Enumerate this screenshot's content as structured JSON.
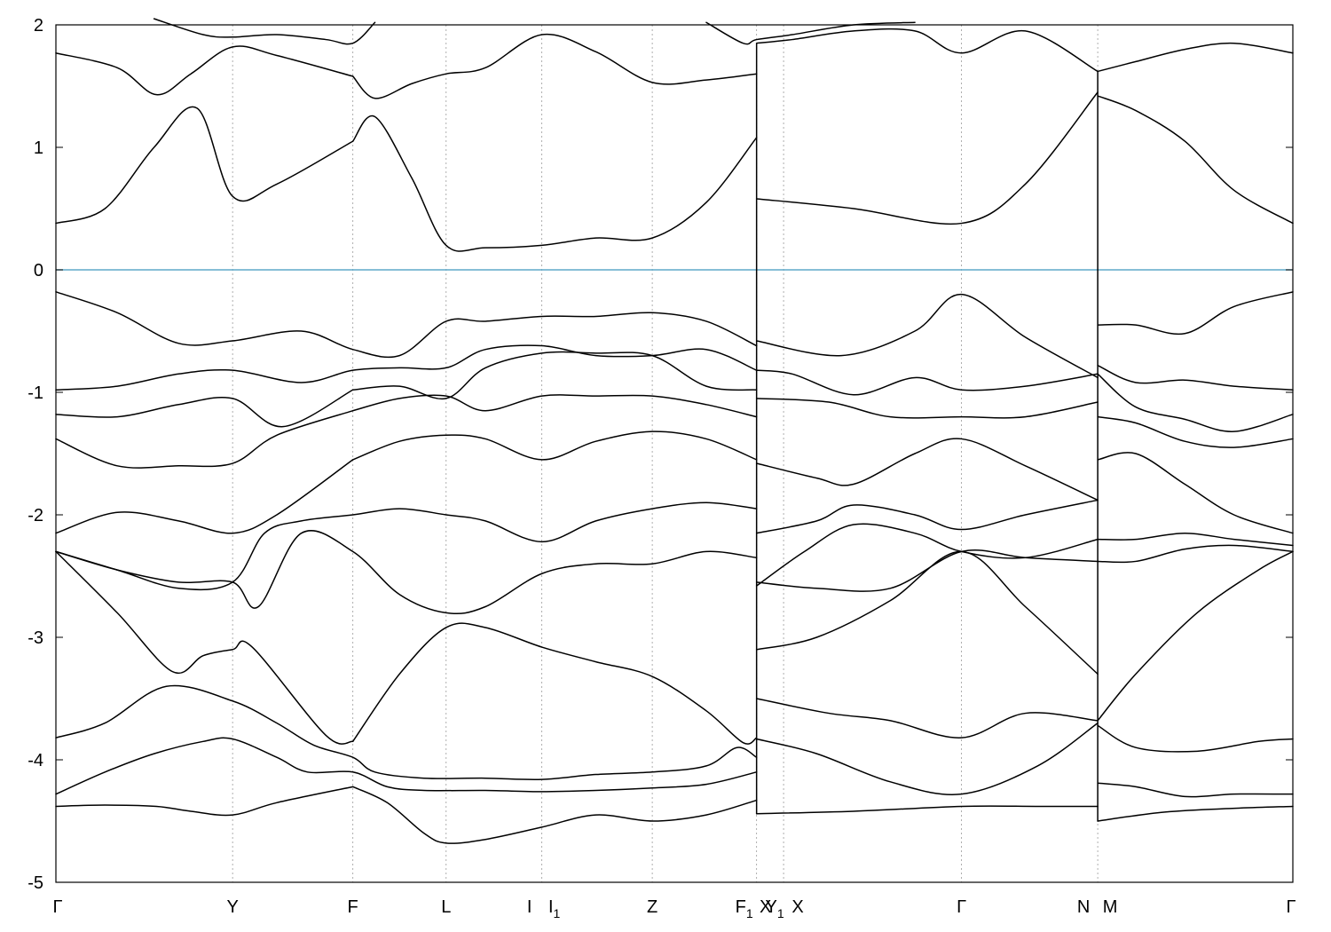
{
  "chart_data": {
    "type": "line",
    "title": "",
    "xlabel": "",
    "ylabel": "",
    "ylim": [
      -5,
      2
    ],
    "xlim": [
      0,
      10.08
    ],
    "y_ticks": [
      2,
      1,
      0,
      -1,
      -2,
      -3,
      -4,
      -5
    ],
    "grid": "vertical dotted at high-symmetry points",
    "legend": "none",
    "fermi_level": {
      "value": 0,
      "color": "#5fa8c8"
    },
    "line_color": "#000000",
    "high_symmetry_points": [
      {
        "label": "Γ",
        "sub": "",
        "x": 0.0
      },
      {
        "label": "Y",
        "sub": "",
        "x": 1.44
      },
      {
        "label": "F",
        "sub": "",
        "x": 2.42
      },
      {
        "label": "L",
        "sub": "",
        "x": 3.18
      },
      {
        "label": "I",
        "sub": "",
        "x": 3.96
      },
      {
        "label": "I",
        "sub": "1",
        "x": 3.96
      },
      {
        "label": "Z",
        "sub": "",
        "x": 4.86
      },
      {
        "label": "F",
        "sub": "1",
        "x": 5.71
      },
      {
        "label": "X",
        "sub": "",
        "x": 5.71
      },
      {
        "label": "Y",
        "sub": "1",
        "x": 5.93
      },
      {
        "label": "X",
        "sub": "",
        "x": 5.93
      },
      {
        "label": "Γ",
        "sub": "",
        "x": 7.38
      },
      {
        "label": "N",
        "sub": "",
        "x": 8.49
      },
      {
        "label": "M",
        "sub": "",
        "x": 8.49
      },
      {
        "label": "Γ",
        "sub": "",
        "x": 10.08
      }
    ],
    "series": [
      {
        "x": [
          0,
          0.4,
          0.82,
          1.1,
          1.44,
          1.8,
          2.42
        ],
        "values": [
          -4.38,
          -4.37,
          -4.38,
          -4.42,
          -4.45,
          -4.35,
          -4.22
        ]
      },
      {
        "x": [
          2.42,
          2.7,
          3.0,
          3.18,
          3.5,
          3.96,
          4.4,
          4.86,
          5.3,
          5.71
        ],
        "values": [
          -4.22,
          -4.35,
          -4.6,
          -4.68,
          -4.65,
          -4.55,
          -4.45,
          -4.5,
          -4.45,
          -4.33
        ]
      },
      {
        "x": [
          5.71,
          6.5,
          7.38,
          8.0,
          8.49
        ],
        "values": [
          -4.44,
          -4.42,
          -4.38,
          -4.38,
          -4.38
        ]
      },
      {
        "x": [
          8.49,
          9.0,
          9.5,
          10.08
        ],
        "values": [
          -4.5,
          -4.43,
          -4.4,
          -4.38
        ]
      },
      {
        "x": [
          0,
          0.4,
          0.8,
          1.2,
          1.44,
          1.8,
          2.05,
          2.42,
          2.7,
          3.0,
          3.5,
          3.96,
          4.4,
          4.86,
          5.3,
          5.71
        ],
        "values": [
          -4.28,
          -4.1,
          -3.95,
          -3.85,
          -3.83,
          -3.98,
          -4.1,
          -4.1,
          -4.22,
          -4.25,
          -4.25,
          -4.26,
          -4.25,
          -4.23,
          -4.2,
          -4.1
        ]
      },
      {
        "x": [
          5.71,
          6.2,
          6.8,
          7.38,
          8.0,
          8.49
        ],
        "values": [
          -3.83,
          -3.95,
          -4.18,
          -4.28,
          -4.05,
          -3.7
        ]
      },
      {
        "x": [
          8.49,
          8.8,
          9.2,
          9.6,
          10.08
        ],
        "values": [
          -4.19,
          -4.22,
          -4.3,
          -4.28,
          -4.28
        ]
      },
      {
        "x": [
          0,
          0.4,
          0.9,
          1.44,
          1.8,
          2.1,
          2.42,
          2.6,
          3.0,
          3.5,
          3.96,
          4.4,
          4.86,
          5.3,
          5.55,
          5.71
        ],
        "values": [
          -3.82,
          -3.7,
          -3.4,
          -3.52,
          -3.7,
          -3.88,
          -3.98,
          -4.1,
          -4.15,
          -4.15,
          -4.16,
          -4.12,
          -4.1,
          -4.05,
          -3.9,
          -3.98
        ]
      },
      {
        "x": [
          5.71,
          6.3,
          6.8,
          7.38,
          7.9,
          8.49
        ],
        "values": [
          -3.5,
          -3.62,
          -3.68,
          -3.82,
          -3.62,
          -3.68
        ]
      },
      {
        "x": [
          8.49,
          8.8,
          9.3,
          9.8,
          10.08
        ],
        "values": [
          -3.72,
          -3.9,
          -3.93,
          -3.85,
          -3.83
        ]
      },
      {
        "x": [
          0,
          0.5,
          0.95,
          1.2,
          1.44,
          1.6,
          2.2,
          2.42
        ],
        "values": [
          -2.3,
          -2.8,
          -3.28,
          -3.15,
          -3.1,
          -3.08,
          -3.8,
          -3.85
        ]
      },
      {
        "x": [
          2.42,
          2.8,
          3.18,
          3.5,
          3.96,
          4.4,
          4.86,
          5.3,
          5.6,
          5.71
        ],
        "values": [
          -3.85,
          -3.3,
          -2.92,
          -2.92,
          -3.08,
          -3.2,
          -3.32,
          -3.6,
          -3.86,
          -3.82
        ]
      },
      {
        "x": [
          5.71,
          6.2,
          6.8,
          7.38,
          7.9,
          8.49
        ],
        "values": [
          -3.1,
          -3.0,
          -2.7,
          -2.3,
          -2.75,
          -3.3
        ]
      },
      {
        "x": [
          8.49,
          8.8,
          9.3,
          9.8,
          10.08
        ],
        "values": [
          -3.68,
          -3.3,
          -2.8,
          -2.45,
          -2.3
        ]
      },
      {
        "x": [
          0,
          0.5,
          1.0,
          1.44,
          1.65,
          2.0,
          2.42,
          2.8,
          3.18,
          3.5,
          3.96,
          4.4,
          4.86,
          5.3,
          5.71
        ],
        "values": [
          -2.3,
          -2.45,
          -2.55,
          -2.55,
          -2.75,
          -2.15,
          -2.3,
          -2.65,
          -2.8,
          -2.75,
          -2.48,
          -2.4,
          -2.4,
          -2.3,
          -2.35
        ]
      },
      {
        "x": [
          5.71,
          6.2,
          6.8,
          7.38,
          7.9,
          8.49
        ],
        "values": [
          -2.55,
          -2.6,
          -2.6,
          -2.3,
          -2.35,
          -2.38
        ]
      },
      {
        "x": [
          8.49,
          8.8,
          9.2,
          9.6,
          10.08
        ],
        "values": [
          -2.38,
          -2.38,
          -2.28,
          -2.25,
          -2.3
        ]
      },
      {
        "x": [
          0,
          0.5,
          1.0,
          1.44,
          1.7,
          2.0,
          2.42,
          2.8,
          3.18,
          3.5,
          3.96,
          4.4,
          4.86,
          5.3,
          5.71
        ],
        "values": [
          -2.3,
          -2.45,
          -2.6,
          -2.55,
          -2.15,
          -2.05,
          -2.0,
          -1.95,
          -2.0,
          -2.05,
          -2.22,
          -2.05,
          -1.95,
          -1.9,
          -1.95
        ]
      },
      {
        "x": [
          5.71,
          6.1,
          6.5,
          7.0,
          7.38,
          7.9,
          8.49
        ],
        "values": [
          -2.58,
          -2.3,
          -2.08,
          -2.15,
          -2.3,
          -2.35,
          -2.2
        ]
      },
      {
        "x": [
          8.49,
          8.8,
          9.2,
          9.6,
          10.08
        ],
        "values": [
          -2.2,
          -2.2,
          -2.15,
          -2.2,
          -2.25
        ]
      },
      {
        "x": [
          0,
          0.5,
          1.0,
          1.44,
          1.8,
          2.42
        ],
        "values": [
          -2.15,
          -1.98,
          -2.05,
          -2.15,
          -2.0,
          -1.55
        ]
      },
      {
        "x": [
          2.42,
          2.8,
          3.18,
          3.5,
          3.96,
          4.4,
          4.86,
          5.3,
          5.71
        ],
        "values": [
          -1.55,
          -1.4,
          -1.35,
          -1.38,
          -1.55,
          -1.4,
          -1.32,
          -1.38,
          -1.55
        ]
      },
      {
        "x": [
          5.71,
          6.2,
          6.5,
          7.0,
          7.38,
          7.9,
          8.49
        ],
        "values": [
          -2.15,
          -2.05,
          -1.92,
          -2.0,
          -2.12,
          -2.0,
          -1.88
        ]
      },
      {
        "x": [
          8.49,
          8.8,
          9.2,
          9.6,
          10.08
        ],
        "values": [
          -1.55,
          -1.5,
          -1.75,
          -2.0,
          -2.15
        ]
      },
      {
        "x": [
          0,
          0.5,
          1.0,
          1.44,
          1.8,
          2.42
        ],
        "values": [
          -1.38,
          -1.6,
          -1.6,
          -1.58,
          -1.35,
          -1.15
        ]
      },
      {
        "x": [
          2.42,
          2.8,
          3.18,
          3.5,
          3.96,
          4.4,
          4.86,
          5.3,
          5.71
        ],
        "values": [
          -1.15,
          -1.05,
          -1.03,
          -1.15,
          -1.03,
          -1.03,
          -1.03,
          -1.1,
          -1.2
        ]
      },
      {
        "x": [
          5.71,
          6.2,
          6.5,
          7.0,
          7.38,
          7.9,
          8.49
        ],
        "values": [
          -1.58,
          -1.7,
          -1.75,
          -1.5,
          -1.38,
          -1.6,
          -1.88
        ]
      },
      {
        "x": [
          8.49,
          8.8,
          9.2,
          9.6,
          10.08
        ],
        "values": [
          -1.2,
          -1.25,
          -1.4,
          -1.45,
          -1.38
        ]
      },
      {
        "x": [
          0,
          0.5,
          1.0,
          1.44,
          1.85,
          2.42
        ],
        "values": [
          -1.18,
          -1.2,
          -1.1,
          -1.05,
          -1.28,
          -0.98
        ]
      },
      {
        "x": [
          2.42,
          2.8,
          3.18,
          3.5,
          3.96,
          4.4,
          4.86,
          5.3,
          5.71
        ],
        "values": [
          -0.98,
          -0.95,
          -1.05,
          -0.8,
          -0.68,
          -0.68,
          -0.7,
          -0.95,
          -0.98
        ]
      },
      {
        "x": [
          5.71,
          6.3,
          6.8,
          7.38,
          7.9,
          8.49
        ],
        "values": [
          -1.05,
          -1.08,
          -1.2,
          -1.2,
          -1.2,
          -1.08
        ]
      },
      {
        "x": [
          8.49,
          8.8,
          9.2,
          9.6,
          10.08
        ],
        "values": [
          -0.85,
          -1.12,
          -1.22,
          -1.32,
          -1.18
        ]
      },
      {
        "x": [
          0,
          0.5,
          1.0,
          1.44,
          2.0,
          2.42,
          2.8,
          3.18,
          3.5,
          3.96,
          4.4,
          4.86,
          5.3,
          5.71
        ],
        "values": [
          -0.98,
          -0.95,
          -0.85,
          -0.82,
          -0.92,
          -0.82,
          -0.8,
          -0.8,
          -0.65,
          -0.62,
          -0.7,
          -0.7,
          -0.65,
          -0.82
        ]
      },
      {
        "x": [
          5.71,
          6.0,
          6.5,
          7.0,
          7.38,
          7.9,
          8.49
        ],
        "values": [
          -0.82,
          -0.85,
          -1.02,
          -0.88,
          -0.98,
          -0.95,
          -0.85
        ]
      },
      {
        "x": [
          8.49,
          8.8,
          9.2,
          9.6,
          10.08
        ],
        "values": [
          -0.78,
          -0.92,
          -0.9,
          -0.95,
          -0.98
        ]
      },
      {
        "x": [
          0,
          0.5,
          1.0,
          1.44,
          2.0,
          2.42,
          2.8,
          3.18,
          3.5,
          3.96,
          4.4,
          4.86,
          5.3,
          5.71
        ],
        "values": [
          -0.18,
          -0.35,
          -0.6,
          -0.58,
          -0.5,
          -0.65,
          -0.7,
          -0.42,
          -0.42,
          -0.38,
          -0.38,
          -0.35,
          -0.42,
          -0.62
        ]
      },
      {
        "x": [
          5.71,
          6.4,
          7.0,
          7.38,
          7.9,
          8.49
        ],
        "values": [
          -0.58,
          -0.7,
          -0.5,
          -0.2,
          -0.55,
          -0.88
        ]
      },
      {
        "x": [
          8.49,
          8.8,
          9.2,
          9.6,
          10.08
        ],
        "values": [
          -0.45,
          -0.45,
          -0.52,
          -0.3,
          -0.18
        ]
      },
      {
        "x": [
          0,
          0.4,
          0.8,
          1.15,
          1.44,
          1.8,
          2.42
        ],
        "values": [
          0.38,
          0.5,
          1.0,
          1.32,
          0.6,
          0.7,
          1.05
        ]
      },
      {
        "x": [
          2.42,
          2.6,
          2.9,
          3.18,
          3.5,
          3.96,
          4.4,
          4.86,
          5.3,
          5.71
        ],
        "values": [
          1.05,
          1.25,
          0.75,
          0.2,
          0.18,
          0.2,
          0.26,
          0.26,
          0.55,
          1.08
        ]
      },
      {
        "x": [
          5.71,
          6.5,
          7.38,
          7.9,
          8.49
        ],
        "values": [
          0.58,
          0.5,
          0.38,
          0.7,
          1.45
        ]
      },
      {
        "x": [
          8.49,
          8.8,
          9.2,
          9.6,
          10.08
        ],
        "values": [
          1.42,
          1.3,
          1.05,
          0.65,
          0.38
        ]
      },
      {
        "x": [
          0,
          0.5,
          0.82,
          1.1,
          1.44,
          1.8,
          2.42
        ],
        "values": [
          1.77,
          1.65,
          1.43,
          1.6,
          1.82,
          1.75,
          1.58
        ]
      },
      {
        "x": [
          2.42,
          2.6,
          2.9,
          3.18,
          3.5,
          3.96,
          4.4,
          4.86,
          5.3,
          5.71
        ],
        "values": [
          1.58,
          1.4,
          1.52,
          1.6,
          1.65,
          1.92,
          1.78,
          1.53,
          1.55,
          1.6
        ]
      },
      {
        "x": [
          5.71,
          6.0,
          6.5,
          7.0,
          7.38,
          7.9,
          8.49
        ],
        "values": [
          1.85,
          1.88,
          1.95,
          1.95,
          1.77,
          1.95,
          1.62
        ]
      },
      {
        "x": [
          8.49,
          8.8,
          9.2,
          9.6,
          10.08
        ],
        "values": [
          1.62,
          1.7,
          1.8,
          1.85,
          1.77
        ]
      },
      {
        "x": [
          0.8,
          1.2,
          1.44,
          1.8,
          2.2,
          2.42,
          2.6
        ],
        "values": [
          2.05,
          1.92,
          1.9,
          1.92,
          1.88,
          1.85,
          2.02
        ]
      },
      {
        "x": [
          5.3,
          5.6,
          5.71,
          6.0,
          6.5,
          7.0
        ],
        "values": [
          2.02,
          1.85,
          1.88,
          1.92,
          2.0,
          2.02
        ]
      }
    ]
  }
}
